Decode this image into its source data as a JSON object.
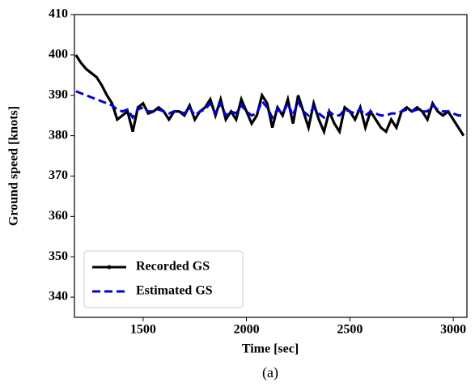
{
  "chart_data": {
    "type": "line",
    "caption": "(a)",
    "x_label": "Time [sec]",
    "y_label": "Ground speed [knots]",
    "x": [
      1175,
      1200,
      1225,
      1250,
      1275,
      1300,
      1325,
      1350,
      1375,
      1400,
      1425,
      1450,
      1475,
      1500,
      1525,
      1550,
      1575,
      1600,
      1625,
      1650,
      1675,
      1700,
      1725,
      1750,
      1775,
      1800,
      1825,
      1850,
      1875,
      1900,
      1925,
      1950,
      1975,
      2000,
      2025,
      2050,
      2075,
      2100,
      2125,
      2150,
      2175,
      2200,
      2225,
      2250,
      2275,
      2300,
      2325,
      2350,
      2375,
      2400,
      2425,
      2450,
      2475,
      2500,
      2525,
      2550,
      2575,
      2600,
      2625,
      2650,
      2675,
      2700,
      2725,
      2750,
      2775,
      2800,
      2825,
      2850,
      2875,
      2900,
      2925,
      2950,
      2975,
      3000,
      3025,
      3050
    ],
    "series": [
      {
        "name": "Recorded GS",
        "color": "#000000",
        "style": "solid",
        "values": [
          400,
          398,
          396.5,
          395.5,
          394.5,
          392.5,
          390,
          388,
          384,
          385,
          386,
          381,
          387,
          388,
          385.5,
          386,
          387,
          386,
          384,
          386,
          386,
          385,
          387.5,
          384,
          386,
          387,
          389,
          385,
          389,
          384,
          386,
          384,
          389,
          386,
          383,
          385,
          390,
          388,
          382,
          387,
          385,
          389,
          383,
          390,
          386,
          382,
          388,
          384,
          381,
          386,
          383,
          381,
          387,
          386,
          384,
          387,
          382,
          386,
          384,
          382,
          381,
          384,
          382,
          386,
          387,
          386,
          387,
          386,
          384,
          388,
          386,
          385,
          386,
          384,
          382,
          380
        ]
      },
      {
        "name": "Estimated GS",
        "color": "#0000dd",
        "style": "dashed",
        "values": [
          391,
          390.5,
          390,
          389.5,
          389,
          388.5,
          388,
          387.5,
          386.5,
          386,
          386.5,
          384.5,
          386.5,
          387,
          386,
          386,
          386.5,
          386,
          385.5,
          386,
          386,
          385.5,
          387,
          385,
          386,
          386.5,
          388,
          385.5,
          388,
          385,
          386,
          385.5,
          387.5,
          386,
          385,
          385.5,
          388.5,
          387,
          384.5,
          386.5,
          385.5,
          388,
          385,
          388.5,
          386,
          385,
          387,
          385.5,
          384.5,
          386,
          385,
          385,
          386.5,
          386,
          385.5,
          386.5,
          385,
          386,
          385.5,
          385,
          385,
          385.5,
          385.5,
          386,
          386.5,
          386,
          386.5,
          386,
          386,
          387.5,
          386.5,
          386,
          386,
          385.5,
          385,
          385
        ]
      }
    ],
    "xlim": [
      1168,
      3066
    ],
    "ylim": [
      335,
      410
    ],
    "xticks": [
      1500,
      2000,
      2500,
      3000
    ],
    "yticks": [
      340,
      350,
      360,
      370,
      380,
      390,
      400,
      410
    ],
    "legend": "lower left"
  }
}
